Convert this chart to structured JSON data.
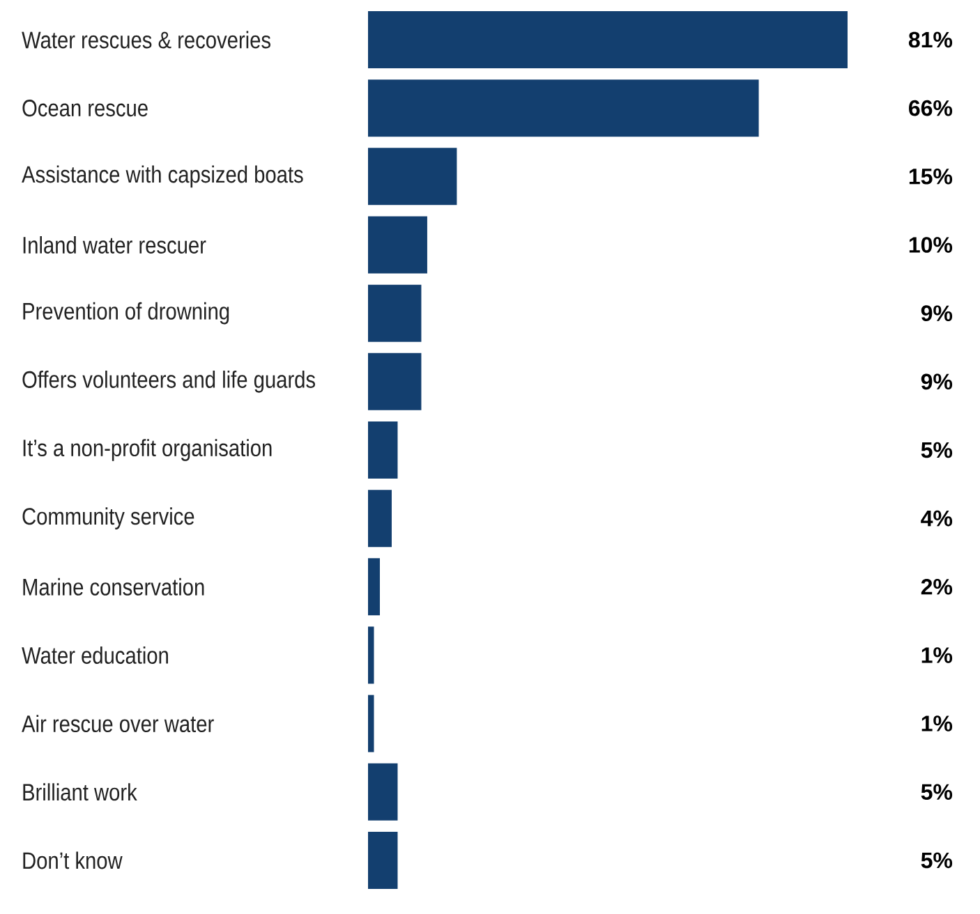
{
  "chart_data": {
    "type": "bar",
    "orientation": "horizontal",
    "categories": [
      "Water rescues & recoveries",
      "Ocean rescue",
      "Assistance with capsized boats",
      "Inland water rescuer",
      "Prevention of drowning",
      "Offers volunteers and life guards",
      "It’s a non-profit organisation",
      "Community service",
      "Marine conservation",
      "Water education",
      "Air rescue over water",
      "Brilliant work",
      "Don’t know"
    ],
    "values": [
      81,
      66,
      15,
      10,
      9,
      9,
      5,
      4,
      2,
      1,
      1,
      5,
      5
    ],
    "value_labels": [
      "81%",
      "66%",
      "15%",
      "10%",
      "9%",
      "9%",
      "5%",
      "4%",
      "2%",
      "1%",
      "1%",
      "5%",
      "5%"
    ],
    "color": "#133f6f"
  }
}
